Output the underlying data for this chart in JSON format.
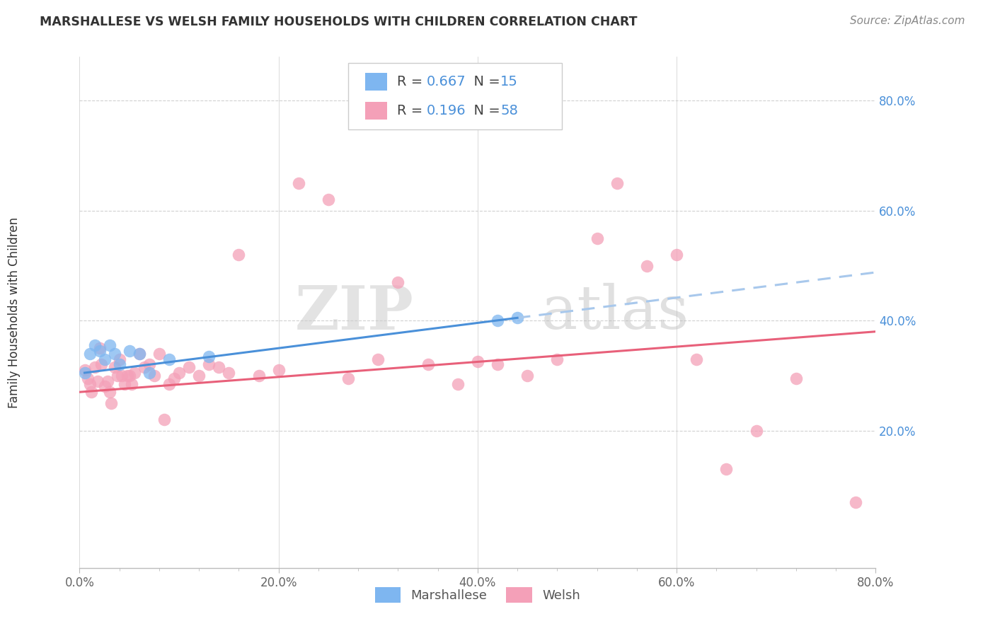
{
  "title": "MARSHALLESE VS WELSH FAMILY HOUSEHOLDS WITH CHILDREN CORRELATION CHART",
  "source": "Source: ZipAtlas.com",
  "ylabel": "Family Households with Children",
  "xlim": [
    0.0,
    0.8
  ],
  "ylim": [
    -0.05,
    0.88
  ],
  "xtick_labels": [
    "0.0%",
    "",
    "",
    "",
    "",
    "20.0%",
    "",
    "",
    "",
    "",
    "40.0%",
    "",
    "",
    "",
    "",
    "60.0%",
    "",
    "",
    "",
    "",
    "80.0%"
  ],
  "xtick_vals": [
    0.0,
    0.04,
    0.08,
    0.12,
    0.16,
    0.2,
    0.24,
    0.28,
    0.32,
    0.36,
    0.4,
    0.44,
    0.48,
    0.52,
    0.56,
    0.6,
    0.64,
    0.68,
    0.72,
    0.76,
    0.8
  ],
  "ytick_labels": [
    "20.0%",
    "40.0%",
    "60.0%",
    "80.0%"
  ],
  "ytick_vals": [
    0.2,
    0.4,
    0.6,
    0.8
  ],
  "legend_r_marshallese": "0.667",
  "legend_n_marshallese": "15",
  "legend_r_welsh": "0.196",
  "legend_n_welsh": "58",
  "marshallese_color": "#7EB6F0",
  "welsh_color": "#F4A0B8",
  "marshallese_line_color": "#4A90D9",
  "welsh_line_color": "#E8607A",
  "dashed_line_color": "#A8C8EC",
  "background_color": "#FFFFFF",
  "watermark_zip": "ZIP",
  "watermark_atlas": "atlas",
  "marshallese_x": [
    0.005,
    0.01,
    0.015,
    0.02,
    0.025,
    0.03,
    0.035,
    0.04,
    0.05,
    0.06,
    0.07,
    0.09,
    0.13,
    0.42,
    0.44
  ],
  "marshallese_y": [
    0.305,
    0.34,
    0.355,
    0.345,
    0.33,
    0.355,
    0.34,
    0.32,
    0.345,
    0.34,
    0.305,
    0.33,
    0.335,
    0.4,
    0.405
  ],
  "welsh_x": [
    0.005,
    0.008,
    0.01,
    0.012,
    0.015,
    0.018,
    0.02,
    0.022,
    0.025,
    0.028,
    0.03,
    0.032,
    0.035,
    0.038,
    0.04,
    0.042,
    0.045,
    0.048,
    0.05,
    0.052,
    0.055,
    0.06,
    0.065,
    0.07,
    0.075,
    0.08,
    0.085,
    0.09,
    0.095,
    0.1,
    0.11,
    0.12,
    0.13,
    0.14,
    0.15,
    0.16,
    0.18,
    0.2,
    0.22,
    0.25,
    0.27,
    0.3,
    0.32,
    0.35,
    0.38,
    0.4,
    0.42,
    0.45,
    0.48,
    0.52,
    0.54,
    0.57,
    0.6,
    0.62,
    0.65,
    0.68,
    0.72,
    0.78
  ],
  "welsh_y": [
    0.31,
    0.295,
    0.285,
    0.27,
    0.315,
    0.29,
    0.35,
    0.32,
    0.28,
    0.29,
    0.27,
    0.25,
    0.315,
    0.3,
    0.33,
    0.3,
    0.285,
    0.3,
    0.3,
    0.285,
    0.305,
    0.34,
    0.315,
    0.32,
    0.3,
    0.34,
    0.22,
    0.285,
    0.295,
    0.305,
    0.315,
    0.3,
    0.32,
    0.315,
    0.305,
    0.52,
    0.3,
    0.31,
    0.65,
    0.62,
    0.295,
    0.33,
    0.47,
    0.32,
    0.285,
    0.325,
    0.32,
    0.3,
    0.33,
    0.55,
    0.65,
    0.5,
    0.52,
    0.33,
    0.13,
    0.2,
    0.295,
    0.07
  ]
}
